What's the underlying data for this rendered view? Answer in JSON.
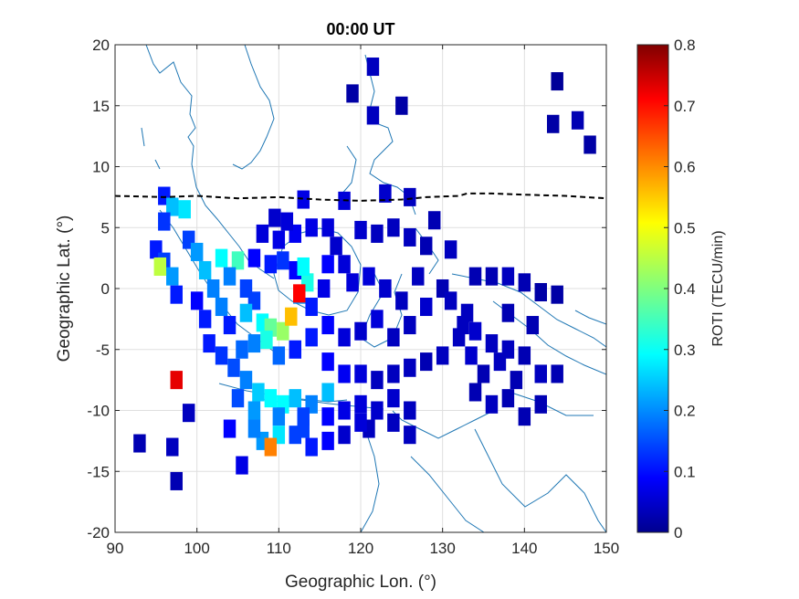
{
  "chart_data": {
    "type": "heatmap",
    "title": "00:00 UT",
    "xlabel": "Geographic Lon. (°)",
    "ylabel": "Geographic Lat. (°)",
    "xlim": [
      90,
      150
    ],
    "ylim": [
      -20,
      20
    ],
    "xticks": [
      90,
      100,
      110,
      120,
      130,
      140,
      150
    ],
    "yticks": [
      -20,
      -15,
      -10,
      -5,
      0,
      5,
      10,
      15,
      20
    ],
    "xtick_labels": [
      "90",
      "100",
      "110",
      "120",
      "130",
      "140",
      "150"
    ],
    "ytick_labels": [
      "-20",
      "-15",
      "-10",
      "-5",
      "0",
      "5",
      "10",
      "15",
      "20"
    ],
    "grid": true,
    "colorbar": {
      "label": "ROTI (TECU/min)",
      "colormap": "jet",
      "range": [
        0,
        0.8
      ],
      "ticks": [
        0,
        0.1,
        0.2,
        0.3,
        0.4,
        0.5,
        0.6,
        0.7,
        0.8
      ],
      "tick_labels": [
        "0",
        "0.1",
        "0.2",
        "0.3",
        "0.4",
        "0.5",
        "0.6",
        "0.7",
        "0.8"
      ]
    },
    "cell_size_deg": {
      "lon": 1.5,
      "lat": 1.5
    },
    "cells": [
      [
        121.5,
        18.2,
        0.05
      ],
      [
        119,
        16,
        0.03
      ],
      [
        121.5,
        14.2,
        0.05
      ],
      [
        125,
        15,
        0.03
      ],
      [
        144,
        17,
        0.02
      ],
      [
        143.5,
        13.5,
        0.03
      ],
      [
        146.5,
        13.8,
        0.04
      ],
      [
        148,
        11.8,
        0.03
      ],
      [
        113,
        7.3,
        0.08
      ],
      [
        118,
        7.2,
        0.07
      ],
      [
        123,
        7.8,
        0.06
      ],
      [
        126,
        7.5,
        0.05
      ],
      [
        129,
        5.6,
        0.04
      ],
      [
        96,
        7.6,
        0.12
      ],
      [
        97,
        6.7,
        0.25
      ],
      [
        98.5,
        6.5,
        0.28
      ],
      [
        96,
        5.5,
        0.14
      ],
      [
        95,
        3.2,
        0.12
      ],
      [
        96,
        2.2,
        0.15
      ],
      [
        97,
        1.0,
        0.22
      ],
      [
        95.5,
        1.8,
        0.45
      ],
      [
        99,
        4.0,
        0.15
      ],
      [
        100,
        3,
        0.22
      ],
      [
        101,
        1.5,
        0.25
      ],
      [
        102,
        0,
        0.2
      ],
      [
        103,
        -1.5,
        0.2
      ],
      [
        104,
        -3,
        0.12
      ],
      [
        97.5,
        -0.5,
        0.12
      ],
      [
        100,
        -1,
        0.1
      ],
      [
        101,
        -2.5,
        0.12
      ],
      [
        103,
        2.5,
        0.3
      ],
      [
        105,
        2.3,
        0.35
      ],
      [
        104,
        1,
        0.2
      ],
      [
        106,
        0,
        0.15
      ],
      [
        107,
        -1,
        0.15
      ],
      [
        106,
        -2,
        0.25
      ],
      [
        108,
        -2.8,
        0.3
      ],
      [
        109,
        -3.2,
        0.38
      ],
      [
        110.5,
        -3.5,
        0.42
      ],
      [
        111.5,
        -2.3,
        0.55
      ],
      [
        108.5,
        -4.2,
        0.32
      ],
      [
        110,
        -5.5,
        0.18
      ],
      [
        107,
        -4.5,
        0.2
      ],
      [
        105.5,
        -5,
        0.18
      ],
      [
        107,
        2.5,
        0.1
      ],
      [
        109,
        2,
        0.12
      ],
      [
        110.5,
        2.3,
        0.14
      ],
      [
        112,
        1.5,
        0.1
      ],
      [
        113.5,
        0.5,
        0.32
      ],
      [
        112.5,
        -0.5,
        0.22
      ],
      [
        113,
        1.8,
        0.3
      ],
      [
        112.5,
        -0.4,
        0.7
      ],
      [
        114,
        -1.5,
        0.12
      ],
      [
        115.5,
        0,
        0.08
      ],
      [
        116,
        2,
        0.1
      ],
      [
        117,
        3.5,
        0.06
      ],
      [
        116,
        5,
        0.07
      ],
      [
        114,
        5,
        0.08
      ],
      [
        112,
        4.5,
        0.09
      ],
      [
        110,
        4,
        0.08
      ],
      [
        108,
        4.5,
        0.07
      ],
      [
        111,
        5.5,
        0.07
      ],
      [
        109.5,
        5.8,
        0.06
      ],
      [
        120,
        4.8,
        0.06
      ],
      [
        122,
        4.5,
        0.05
      ],
      [
        124,
        5,
        0.05
      ],
      [
        126,
        4.2,
        0.05
      ],
      [
        128,
        3.5,
        0.04
      ],
      [
        131,
        3.2,
        0.05
      ],
      [
        134,
        1,
        0.04
      ],
      [
        136,
        1,
        0.04
      ],
      [
        138,
        1,
        0.05
      ],
      [
        140,
        0.5,
        0.04
      ],
      [
        142,
        -0.3,
        0.03
      ],
      [
        144,
        -0.5,
        0.03
      ],
      [
        130,
        0,
        0.04
      ],
      [
        128,
        -1.5,
        0.06
      ],
      [
        126,
        -3,
        0.05
      ],
      [
        124,
        -4,
        0.05
      ],
      [
        122,
        -2.5,
        0.07
      ],
      [
        120,
        -3.5,
        0.06
      ],
      [
        118,
        -4,
        0.07
      ],
      [
        116,
        -3,
        0.1
      ],
      [
        114,
        -4,
        0.12
      ],
      [
        112,
        -5,
        0.12
      ],
      [
        116,
        -6,
        0.1
      ],
      [
        118,
        -7,
        0.09
      ],
      [
        120,
        -7,
        0.07
      ],
      [
        122,
        -7.5,
        0.05
      ],
      [
        124,
        -7,
        0.05
      ],
      [
        126,
        -6.5,
        0.05
      ],
      [
        128,
        -6,
        0.04
      ],
      [
        130,
        -5.5,
        0.05
      ],
      [
        132,
        -4,
        0.05
      ],
      [
        134,
        -3.5,
        0.06
      ],
      [
        136,
        -4.5,
        0.05
      ],
      [
        138,
        -5,
        0.05
      ],
      [
        140,
        -5.5,
        0.04
      ],
      [
        142,
        -7,
        0.05
      ],
      [
        139,
        -7.5,
        0.04
      ],
      [
        137,
        -6,
        0.05
      ],
      [
        135,
        -7,
        0.04
      ],
      [
        134,
        -8.5,
        0.04
      ],
      [
        136,
        -9.5,
        0.05
      ],
      [
        138,
        -9,
        0.04
      ],
      [
        140,
        -10.5,
        0.04
      ],
      [
        142,
        -9.5,
        0.04
      ],
      [
        144,
        -7,
        0.04
      ],
      [
        141,
        -3,
        0.04
      ],
      [
        138,
        -2,
        0.04
      ],
      [
        133,
        -2,
        0.05
      ],
      [
        131,
        -1,
        0.05
      ],
      [
        127,
        1,
        0.05
      ],
      [
        125,
        -1,
        0.05
      ],
      [
        123,
        0,
        0.06
      ],
      [
        121,
        1,
        0.07
      ],
      [
        119,
        0.5,
        0.07
      ],
      [
        118,
        2,
        0.07
      ],
      [
        101.5,
        -4.5,
        0.12
      ],
      [
        103,
        -5.5,
        0.14
      ],
      [
        104.5,
        -6.5,
        0.16
      ],
      [
        106,
        -7.5,
        0.2
      ],
      [
        107.5,
        -8.5,
        0.26
      ],
      [
        109,
        -9,
        0.3
      ],
      [
        110.5,
        -9.5,
        0.3
      ],
      [
        112,
        -9,
        0.25
      ],
      [
        114,
        -9.5,
        0.2
      ],
      [
        116,
        -8.5,
        0.25
      ],
      [
        105,
        -9,
        0.16
      ],
      [
        107,
        -10,
        0.22
      ],
      [
        110,
        -10.5,
        0.2
      ],
      [
        113,
        -10.5,
        0.15
      ],
      [
        116,
        -10.5,
        0.1
      ],
      [
        118,
        -10,
        0.08
      ],
      [
        120,
        -9.5,
        0.07
      ],
      [
        122,
        -10,
        0.06
      ],
      [
        124,
        -9,
        0.06
      ],
      [
        126,
        -10,
        0.05
      ],
      [
        118,
        -12,
        0.06
      ],
      [
        121,
        -11.5,
        0.05
      ],
      [
        124,
        -11,
        0.05
      ],
      [
        126,
        -12,
        0.05
      ],
      [
        108,
        -12.5,
        0.22
      ],
      [
        107,
        -11.5,
        0.2
      ],
      [
        110,
        -12,
        0.28
      ],
      [
        109,
        -13,
        0.6
      ],
      [
        112,
        -12,
        0.15
      ],
      [
        114,
        -13,
        0.12
      ],
      [
        116,
        -12.5,
        0.1
      ],
      [
        113,
        -11.5,
        0.15
      ],
      [
        104,
        -11.5,
        0.1
      ],
      [
        105.5,
        -14.5,
        0.08
      ],
      [
        97.5,
        -7.5,
        0.72
      ],
      [
        99,
        -10.2,
        0.05
      ],
      [
        93,
        -12.7,
        0.04
      ],
      [
        97,
        -13,
        0.05
      ],
      [
        97.5,
        -15.8,
        0.04
      ],
      [
        120,
        -11,
        0.07
      ],
      [
        132.5,
        -3,
        0.05
      ],
      [
        133.5,
        -5.5,
        0.06
      ]
    ],
    "annotations": {
      "dip_equator_line": [
        [
          90,
          7.6
        ],
        [
          96,
          7.5
        ],
        [
          100,
          7.6
        ],
        [
          105,
          7.4
        ],
        [
          110,
          7.5
        ],
        [
          115,
          7.3
        ],
        [
          120,
          7.2
        ],
        [
          125,
          7.3
        ],
        [
          128,
          7.5
        ],
        [
          132,
          7.6
        ],
        [
          133,
          7.8
        ],
        [
          136,
          7.8
        ],
        [
          140,
          7.7
        ],
        [
          145,
          7.6
        ],
        [
          150,
          7.4
        ]
      ]
    },
    "colors": {
      "coastline": "#1f77b4",
      "grid": "#dfdfdf",
      "axes": "#262626"
    }
  }
}
